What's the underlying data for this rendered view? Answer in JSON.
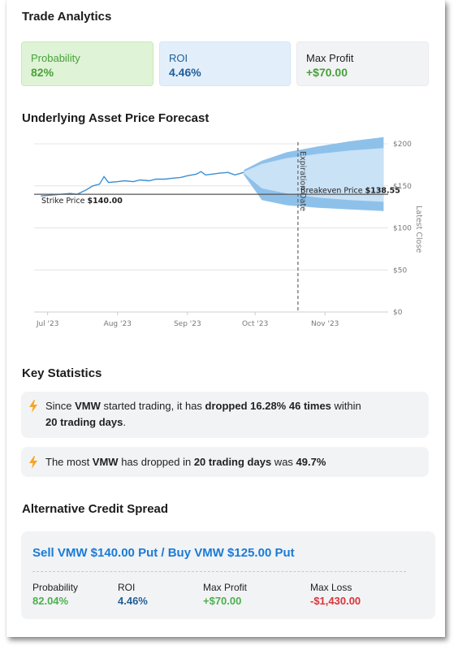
{
  "trade_analytics": {
    "title": "Trade Analytics",
    "probability": {
      "label": "Probability",
      "value": "82%"
    },
    "roi": {
      "label": "ROI",
      "value": "4.46%"
    },
    "max_profit": {
      "label": "Max Profit",
      "value": "+$70.00"
    }
  },
  "forecast": {
    "title": "Underlying Asset Price Forecast",
    "chart_data": {
      "type": "line",
      "title": "Underlying Asset Price Forecast",
      "x_ticks": [
        "Jul '23",
        "Aug '23",
        "Sep '23",
        "Oct '23",
        "Nov '23"
      ],
      "y_ticks": [
        "$200",
        "$150",
        "$100",
        "$50",
        "$0"
      ],
      "ylim": [
        0,
        200
      ],
      "history": [
        {
          "date": "2023-06-28",
          "price": 138
        },
        {
          "date": "2023-07-03",
          "price": 139
        },
        {
          "date": "2023-07-07",
          "price": 140
        },
        {
          "date": "2023-07-11",
          "price": 141
        },
        {
          "date": "2023-07-14",
          "price": 140
        },
        {
          "date": "2023-07-18",
          "price": 145
        },
        {
          "date": "2023-07-21",
          "price": 150
        },
        {
          "date": "2023-07-24",
          "price": 152
        },
        {
          "date": "2023-07-26",
          "price": 161
        },
        {
          "date": "2023-07-28",
          "price": 154
        },
        {
          "date": "2023-08-01",
          "price": 155
        },
        {
          "date": "2023-08-04",
          "price": 156
        },
        {
          "date": "2023-08-08",
          "price": 155
        },
        {
          "date": "2023-08-11",
          "price": 157
        },
        {
          "date": "2023-08-15",
          "price": 156
        },
        {
          "date": "2023-08-18",
          "price": 158
        },
        {
          "date": "2023-08-22",
          "price": 158
        },
        {
          "date": "2023-08-25",
          "price": 159
        },
        {
          "date": "2023-08-29",
          "price": 160
        },
        {
          "date": "2023-09-01",
          "price": 162
        },
        {
          "date": "2023-09-05",
          "price": 164
        },
        {
          "date": "2023-09-07",
          "price": 167
        },
        {
          "date": "2023-09-09",
          "price": 163
        },
        {
          "date": "2023-09-12",
          "price": 164
        },
        {
          "date": "2023-09-15",
          "price": 165
        },
        {
          "date": "2023-09-19",
          "price": 166
        },
        {
          "date": "2023-09-22",
          "price": 163
        },
        {
          "date": "2023-09-26",
          "price": 166
        }
      ],
      "forecast_bands": [
        {
          "date": "2023-09-26",
          "p5": 163,
          "p25": 165,
          "p75": 167,
          "p95": 169
        },
        {
          "date": "2023-10-04",
          "p5": 133,
          "p25": 147,
          "p75": 176,
          "p95": 180
        },
        {
          "date": "2023-10-15",
          "p5": 127,
          "p25": 141,
          "p75": 183,
          "p95": 190
        },
        {
          "date": "2023-10-29",
          "p5": 124,
          "p25": 136,
          "p75": 188,
          "p95": 197
        },
        {
          "date": "2023-11-12",
          "p5": 122,
          "p25": 133,
          "p75": 192,
          "p95": 203
        },
        {
          "date": "2023-11-27",
          "p5": 120,
          "p25": 131,
          "p75": 195,
          "p95": 208
        }
      ],
      "strike_price": {
        "label": "Strike Price",
        "value": 140.0,
        "value_label": "$140.00"
      },
      "breakeven_price": {
        "label": "Breakeven Price",
        "value": 138.55,
        "value_label": "$138.55"
      },
      "expiration": {
        "label": "Expiration Date",
        "date": "2023-10-20"
      },
      "latest_close_label": "Latest Close",
      "colors": {
        "line": "#3b8fd4",
        "band_outer": "#8ec1ea",
        "band_inner": "#c9e2f6",
        "strike": "#555555",
        "expiration": "#666666"
      }
    }
  },
  "key_statistics": {
    "title": "Key Statistics",
    "stat1": {
      "p1": "Since ",
      "ticker": "VMW",
      "p2": " started trading, it has ",
      "dropped": "dropped 16.28%",
      "p3": " ",
      "times": "46 times",
      "p4": " within ",
      "window": "20 trading days",
      "p5": "."
    },
    "stat2": {
      "p1": "The most ",
      "ticker": "VMW",
      "p2": " has dropped in ",
      "window": "20 trading days",
      "p3": " was ",
      "value": "49.7%"
    }
  },
  "alternative": {
    "title": "Alternative Credit Spread",
    "spread_title": "Sell VMW $140.00 Put / Buy VMW $125.00 Put",
    "probability": {
      "label": "Probability",
      "value": "82.04%"
    },
    "roi": {
      "label": "ROI",
      "value": "4.46%"
    },
    "max_profit": {
      "label": "Max Profit",
      "value": "+$70.00"
    },
    "max_loss": {
      "label": "Max Loss",
      "value": "-$1,430.00"
    },
    "colors": {
      "green": "#4caf50",
      "blue": "#1f5e9a",
      "red": "#d9343a"
    }
  }
}
